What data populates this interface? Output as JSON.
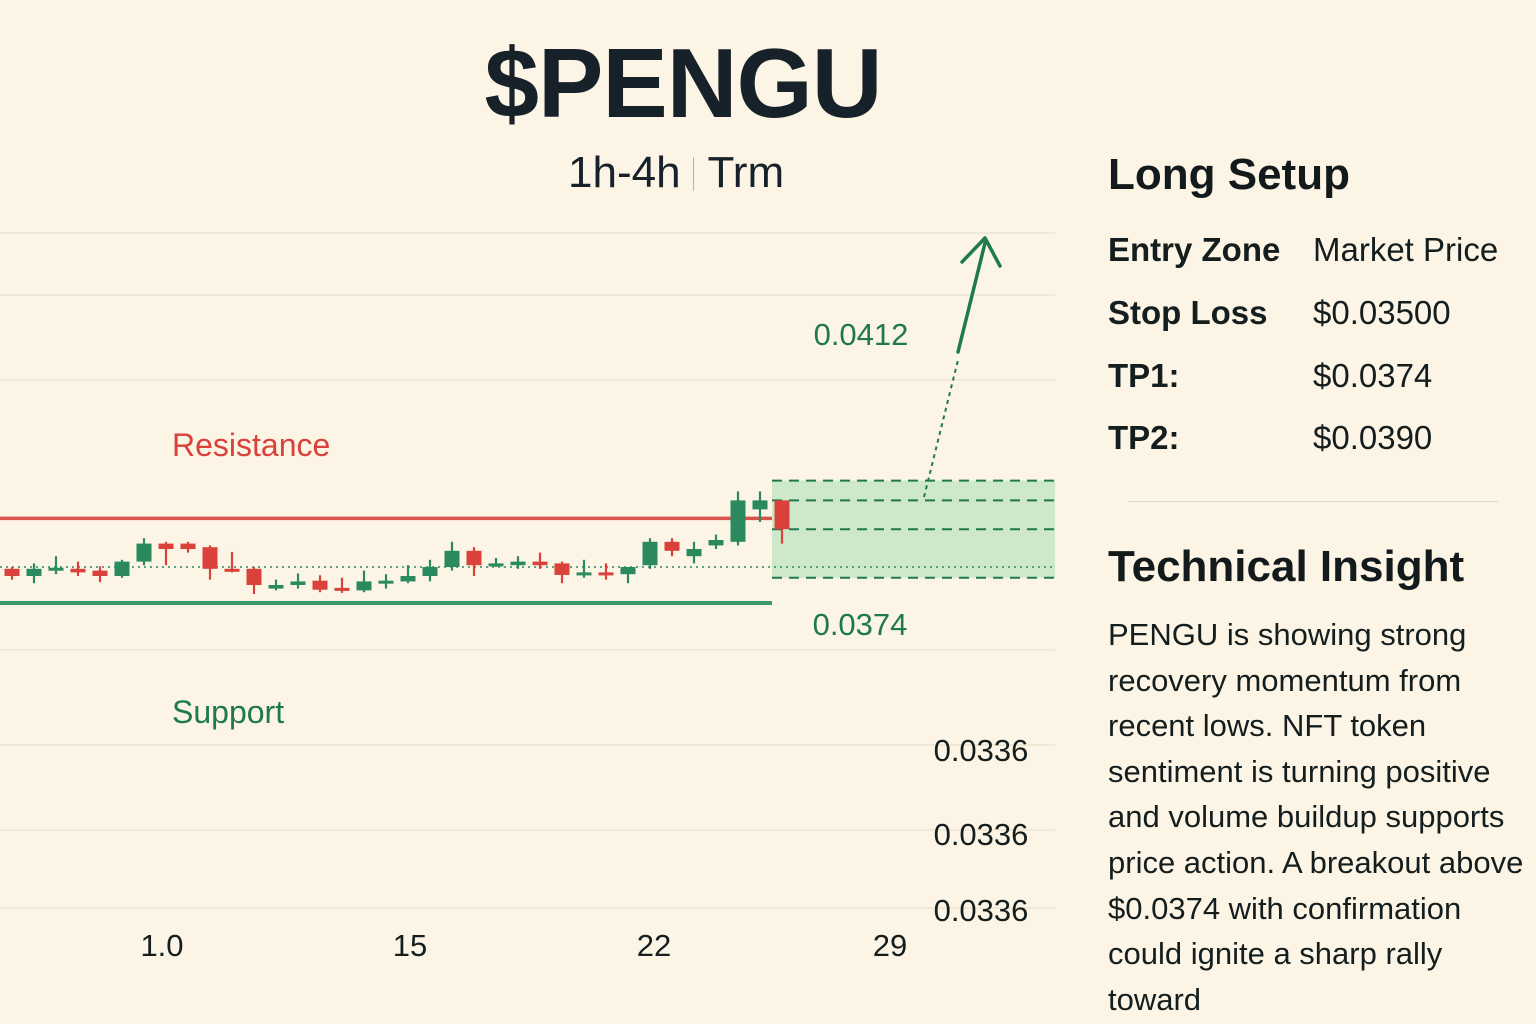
{
  "header": {
    "title": "$PENGU",
    "subtitle_left": "1h-4h",
    "subtitle_right": "Trm"
  },
  "colors": {
    "background": "#fcf5e6",
    "bull": "#2a8a5e",
    "bear": "#d9413a",
    "support": "#3a9a6a",
    "resistance": "#d9534a",
    "target_zone": "#bde3bf",
    "label_green": "#1f7a4a",
    "text_dark": "#141e1e"
  },
  "chart_data": {
    "type": "candlestick",
    "title": "$PENGU",
    "subtitle": "1h-4h   Trm",
    "x_tick_labels": [
      "1.0",
      "15",
      "22",
      "29"
    ],
    "right_axis_labels": [
      "0.0336",
      "0.0336",
      "0.0336"
    ],
    "candles": [
      {
        "o": 0.03555,
        "h": 0.0356,
        "l": 0.03525,
        "c": 0.03535
      },
      {
        "o": 0.03535,
        "h": 0.0357,
        "l": 0.03515,
        "c": 0.03555
      },
      {
        "o": 0.03555,
        "h": 0.0359,
        "l": 0.0354,
        "c": 0.03558
      },
      {
        "o": 0.03555,
        "h": 0.03575,
        "l": 0.03535,
        "c": 0.03545
      },
      {
        "o": 0.0355,
        "h": 0.03562,
        "l": 0.03518,
        "c": 0.03535
      },
      {
        "o": 0.03535,
        "h": 0.0358,
        "l": 0.0353,
        "c": 0.03575
      },
      {
        "o": 0.03575,
        "h": 0.0364,
        "l": 0.03565,
        "c": 0.03625
      },
      {
        "o": 0.03625,
        "h": 0.0363,
        "l": 0.03565,
        "c": 0.0361
      },
      {
        "o": 0.03625,
        "h": 0.0363,
        "l": 0.036,
        "c": 0.0361
      },
      {
        "o": 0.03615,
        "h": 0.0362,
        "l": 0.03525,
        "c": 0.03555
      },
      {
        "o": 0.03555,
        "h": 0.03602,
        "l": 0.03545,
        "c": 0.0355
      },
      {
        "o": 0.03555,
        "h": 0.0356,
        "l": 0.03485,
        "c": 0.0351
      },
      {
        "o": 0.035,
        "h": 0.03525,
        "l": 0.03495,
        "c": 0.0351
      },
      {
        "o": 0.0351,
        "h": 0.03542,
        "l": 0.035,
        "c": 0.0352
      },
      {
        "o": 0.03522,
        "h": 0.03537,
        "l": 0.0349,
        "c": 0.03497
      },
      {
        "o": 0.03502,
        "h": 0.0353,
        "l": 0.03488,
        "c": 0.03494
      },
      {
        "o": 0.03495,
        "h": 0.0355,
        "l": 0.0349,
        "c": 0.0352
      },
      {
        "o": 0.03515,
        "h": 0.0354,
        "l": 0.035,
        "c": 0.03522
      },
      {
        "o": 0.0352,
        "h": 0.03565,
        "l": 0.03515,
        "c": 0.03535
      },
      {
        "o": 0.03535,
        "h": 0.0358,
        "l": 0.0352,
        "c": 0.0356
      },
      {
        "o": 0.0356,
        "h": 0.0363,
        "l": 0.0355,
        "c": 0.03605
      },
      {
        "o": 0.03605,
        "h": 0.03615,
        "l": 0.03535,
        "c": 0.03565
      },
      {
        "o": 0.03565,
        "h": 0.03585,
        "l": 0.0356,
        "c": 0.0357
      },
      {
        "o": 0.03565,
        "h": 0.0359,
        "l": 0.03555,
        "c": 0.03575
      },
      {
        "o": 0.03575,
        "h": 0.036,
        "l": 0.03555,
        "c": 0.03565
      },
      {
        "o": 0.0357,
        "h": 0.03575,
        "l": 0.03515,
        "c": 0.03538
      },
      {
        "o": 0.03538,
        "h": 0.0358,
        "l": 0.0353,
        "c": 0.03545
      },
      {
        "o": 0.03545,
        "h": 0.0357,
        "l": 0.03525,
        "c": 0.0354
      },
      {
        "o": 0.0354,
        "h": 0.0356,
        "l": 0.03515,
        "c": 0.0356
      },
      {
        "o": 0.03565,
        "h": 0.0364,
        "l": 0.03555,
        "c": 0.0363
      },
      {
        "o": 0.0363,
        "h": 0.0364,
        "l": 0.0359,
        "c": 0.03605
      },
      {
        "o": 0.0359,
        "h": 0.0363,
        "l": 0.0357,
        "c": 0.0361
      },
      {
        "o": 0.0362,
        "h": 0.0365,
        "l": 0.0361,
        "c": 0.03635
      },
      {
        "o": 0.0363,
        "h": 0.0377,
        "l": 0.0362,
        "c": 0.03745
      },
      {
        "o": 0.0372,
        "h": 0.0377,
        "l": 0.03685,
        "c": 0.03745
      },
      {
        "o": 0.03745,
        "h": 0.03745,
        "l": 0.03625,
        "c": 0.03665
      }
    ],
    "levels": {
      "resistance": {
        "label": "Resistance",
        "value": 0.03695
      },
      "support": {
        "label": "Support",
        "value": 0.0346
      },
      "reference": 0.0356
    },
    "target_zone": {
      "top": 0.038,
      "bottom": 0.0353,
      "top_label": "0.0412",
      "bottom_label": "0.0374",
      "inner_levels": [
        0.03745,
        0.03665
      ]
    }
  },
  "setup": {
    "heading": "Long Setup",
    "rows": [
      {
        "label": "Entry Zone",
        "value": "Market Price"
      },
      {
        "label": "Stop Loss",
        "value": "$0.03500"
      },
      {
        "label": "TP1:",
        "value": "$0.0374"
      },
      {
        "label": "TP2:",
        "value": "$0.0390"
      }
    ]
  },
  "insight": {
    "heading": "Technical Insight",
    "body": "PENGU is showing strong recovery momentum from recent lows. NFT token sentiment is turning positive and volume buildup supports price action. A breakout above $0.0374 with confirmation could ignite a sharp rally toward"
  }
}
